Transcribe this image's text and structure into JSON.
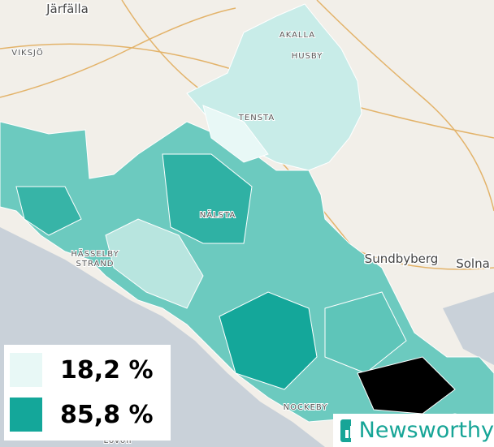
{
  "places": [
    "Järfälla",
    "VIKSJÖ",
    "AKALLA",
    "HUSBY",
    "TENSTA",
    "NÄLSTA",
    "HÄSSELBY",
    "STRAND",
    "Sundbyberg",
    "Solna",
    "NOCKEBY",
    "Lovön"
  ],
  "legend": [
    {
      "label": "18,2 %",
      "color": "#e8f8f6"
    },
    {
      "label": "85,8 %",
      "color": "#14a79a"
    }
  ],
  "brand": "Newsworthy"
}
